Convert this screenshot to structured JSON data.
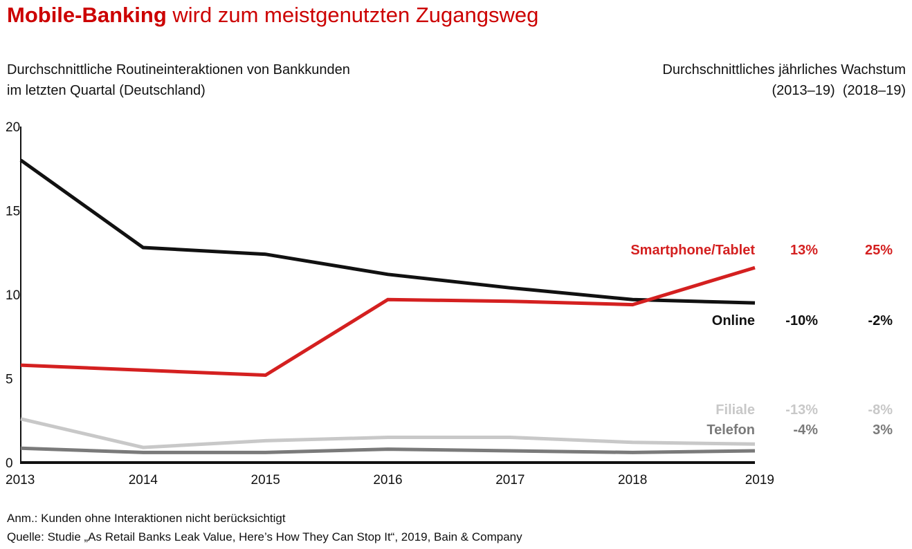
{
  "header": {
    "title_bold": "Mobile-Banking",
    "title_rest": " wird zum meistgenutzten Zugangsweg",
    "subtitle_line1": "Durchschnittliche Routineinteraktionen von Bankkunden",
    "subtitle_line2": "im letzten Quartal (Deutschland)",
    "growth_title": "Durchschnittliches jährliches Wachstum",
    "growth_col1": "(2013–19)",
    "growth_col2": "(2018–19)"
  },
  "footer": {
    "note": "Anm.: Kunden ohne Interaktionen nicht berücksichtigt",
    "source": "Quelle: Studie „As Retail Banks Leak Value, Here’s How They Can Stop It“, 2019, Bain & Company"
  },
  "chart_data": {
    "type": "line",
    "x": [
      "2013",
      "2014",
      "2015",
      "2016",
      "2017",
      "2018",
      "2019"
    ],
    "ylim": [
      0,
      20
    ],
    "yticks": [
      "0",
      "5",
      "10",
      "15",
      "20"
    ],
    "grid": false,
    "series": [
      {
        "name": "Smartphone/Tablet",
        "color": "#d42020",
        "values": [
          5.8,
          5.5,
          5.2,
          9.7,
          9.6,
          9.4,
          11.6
        ],
        "growth_2013_19": "13%",
        "growth_2018_19": "25%",
        "label_color": "#d42020"
      },
      {
        "name": "Online",
        "color": "#111111",
        "values": [
          18.0,
          12.8,
          12.4,
          11.2,
          10.4,
          9.7,
          9.5
        ],
        "growth_2013_19": "-10%",
        "growth_2018_19": "-2%",
        "label_color": "#111111"
      },
      {
        "name": "Filiale",
        "color": "#c8c8c8",
        "values": [
          2.6,
          0.9,
          1.3,
          1.5,
          1.5,
          1.2,
          1.1
        ],
        "growth_2013_19": "-13%",
        "growth_2018_19": "-8%",
        "label_color": "#c8c8c8"
      },
      {
        "name": "Telefon",
        "color": "#7a7a7a",
        "values": [
          0.85,
          0.6,
          0.6,
          0.8,
          0.7,
          0.6,
          0.7
        ],
        "growth_2013_19": "-4%",
        "growth_2018_19": "3%",
        "label_color": "#7a7a7a"
      }
    ]
  }
}
